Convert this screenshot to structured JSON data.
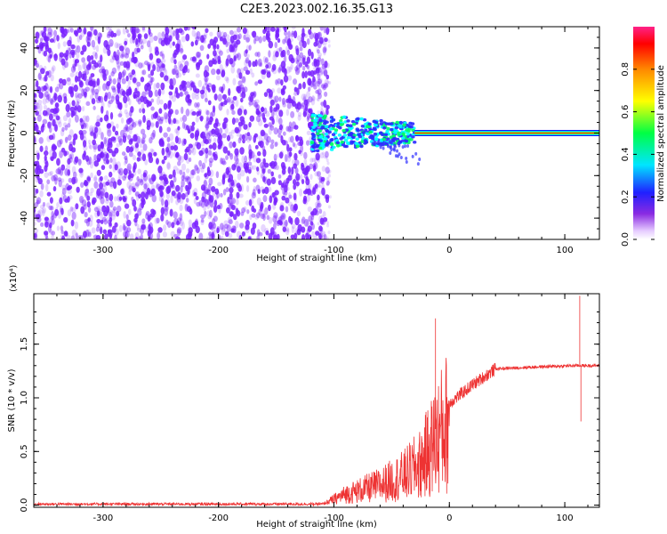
{
  "title": "C2E3.2023.002.16.35.G13",
  "colors": {
    "snr_line": "#ee3333",
    "noise_points": "#7a22ff",
    "spectrum_band_colors": [
      "#00ffff",
      "#00ff66",
      "#ffff00",
      "#ff8800",
      "#ff0000"
    ]
  },
  "chart_data": [
    {
      "type": "heatmap",
      "name": "spectrogram",
      "xlabel": "Height of straight line (km)",
      "ylabel": "Frequency (Hz)",
      "xlim": [
        -360,
        130
      ],
      "ylim": [
        -50,
        50
      ],
      "xticks": [
        -300,
        -200,
        -100,
        0,
        100
      ],
      "yticks": [
        -40,
        -20,
        0,
        20,
        40
      ],
      "colorbar": {
        "label": "Normalized spectral amplitude",
        "range": [
          0,
          1
        ],
        "ticks": [
          "0.0",
          "0.2",
          "0.4",
          "0.6",
          "0.8"
        ],
        "tick_values": [
          0.0,
          0.2,
          0.4,
          0.6,
          0.8
        ]
      },
      "features": {
        "noise_region_x": [
          -360,
          -110
        ],
        "scatter_region_x": [
          -120,
          -30
        ],
        "steady_tone_x": [
          -30,
          130
        ],
        "steady_tone_freq": 0
      }
    },
    {
      "type": "line",
      "name": "snr",
      "xlabel": "Height of straight line (km)",
      "ylabel": "SNR (10 * v/v)",
      "scale_note": "(x10⁴)",
      "xlim": [
        -360,
        130
      ],
      "ylim": [
        -0.02,
        1.97
      ],
      "xticks": [
        -300,
        -200,
        -100,
        0,
        100
      ],
      "yticks": [
        "0.0",
        "0.5",
        "1.0",
        "1.5"
      ],
      "ytick_values": [
        0.0,
        0.5,
        1.0,
        1.5
      ],
      "series_profile": {
        "x": [
          -360,
          -110,
          -90,
          -60,
          -40,
          -25,
          -15,
          0,
          20,
          40,
          80,
          110,
          130
        ],
        "y": [
          0.01,
          0.01,
          0.12,
          0.22,
          0.32,
          0.45,
          0.65,
          0.95,
          1.12,
          1.27,
          1.29,
          1.3,
          1.3
        ]
      },
      "spikes": [
        {
          "x": -12,
          "y": 1.74
        },
        {
          "x": 113,
          "y": 1.95
        },
        {
          "x": 114,
          "y": 0.78
        }
      ]
    }
  ]
}
